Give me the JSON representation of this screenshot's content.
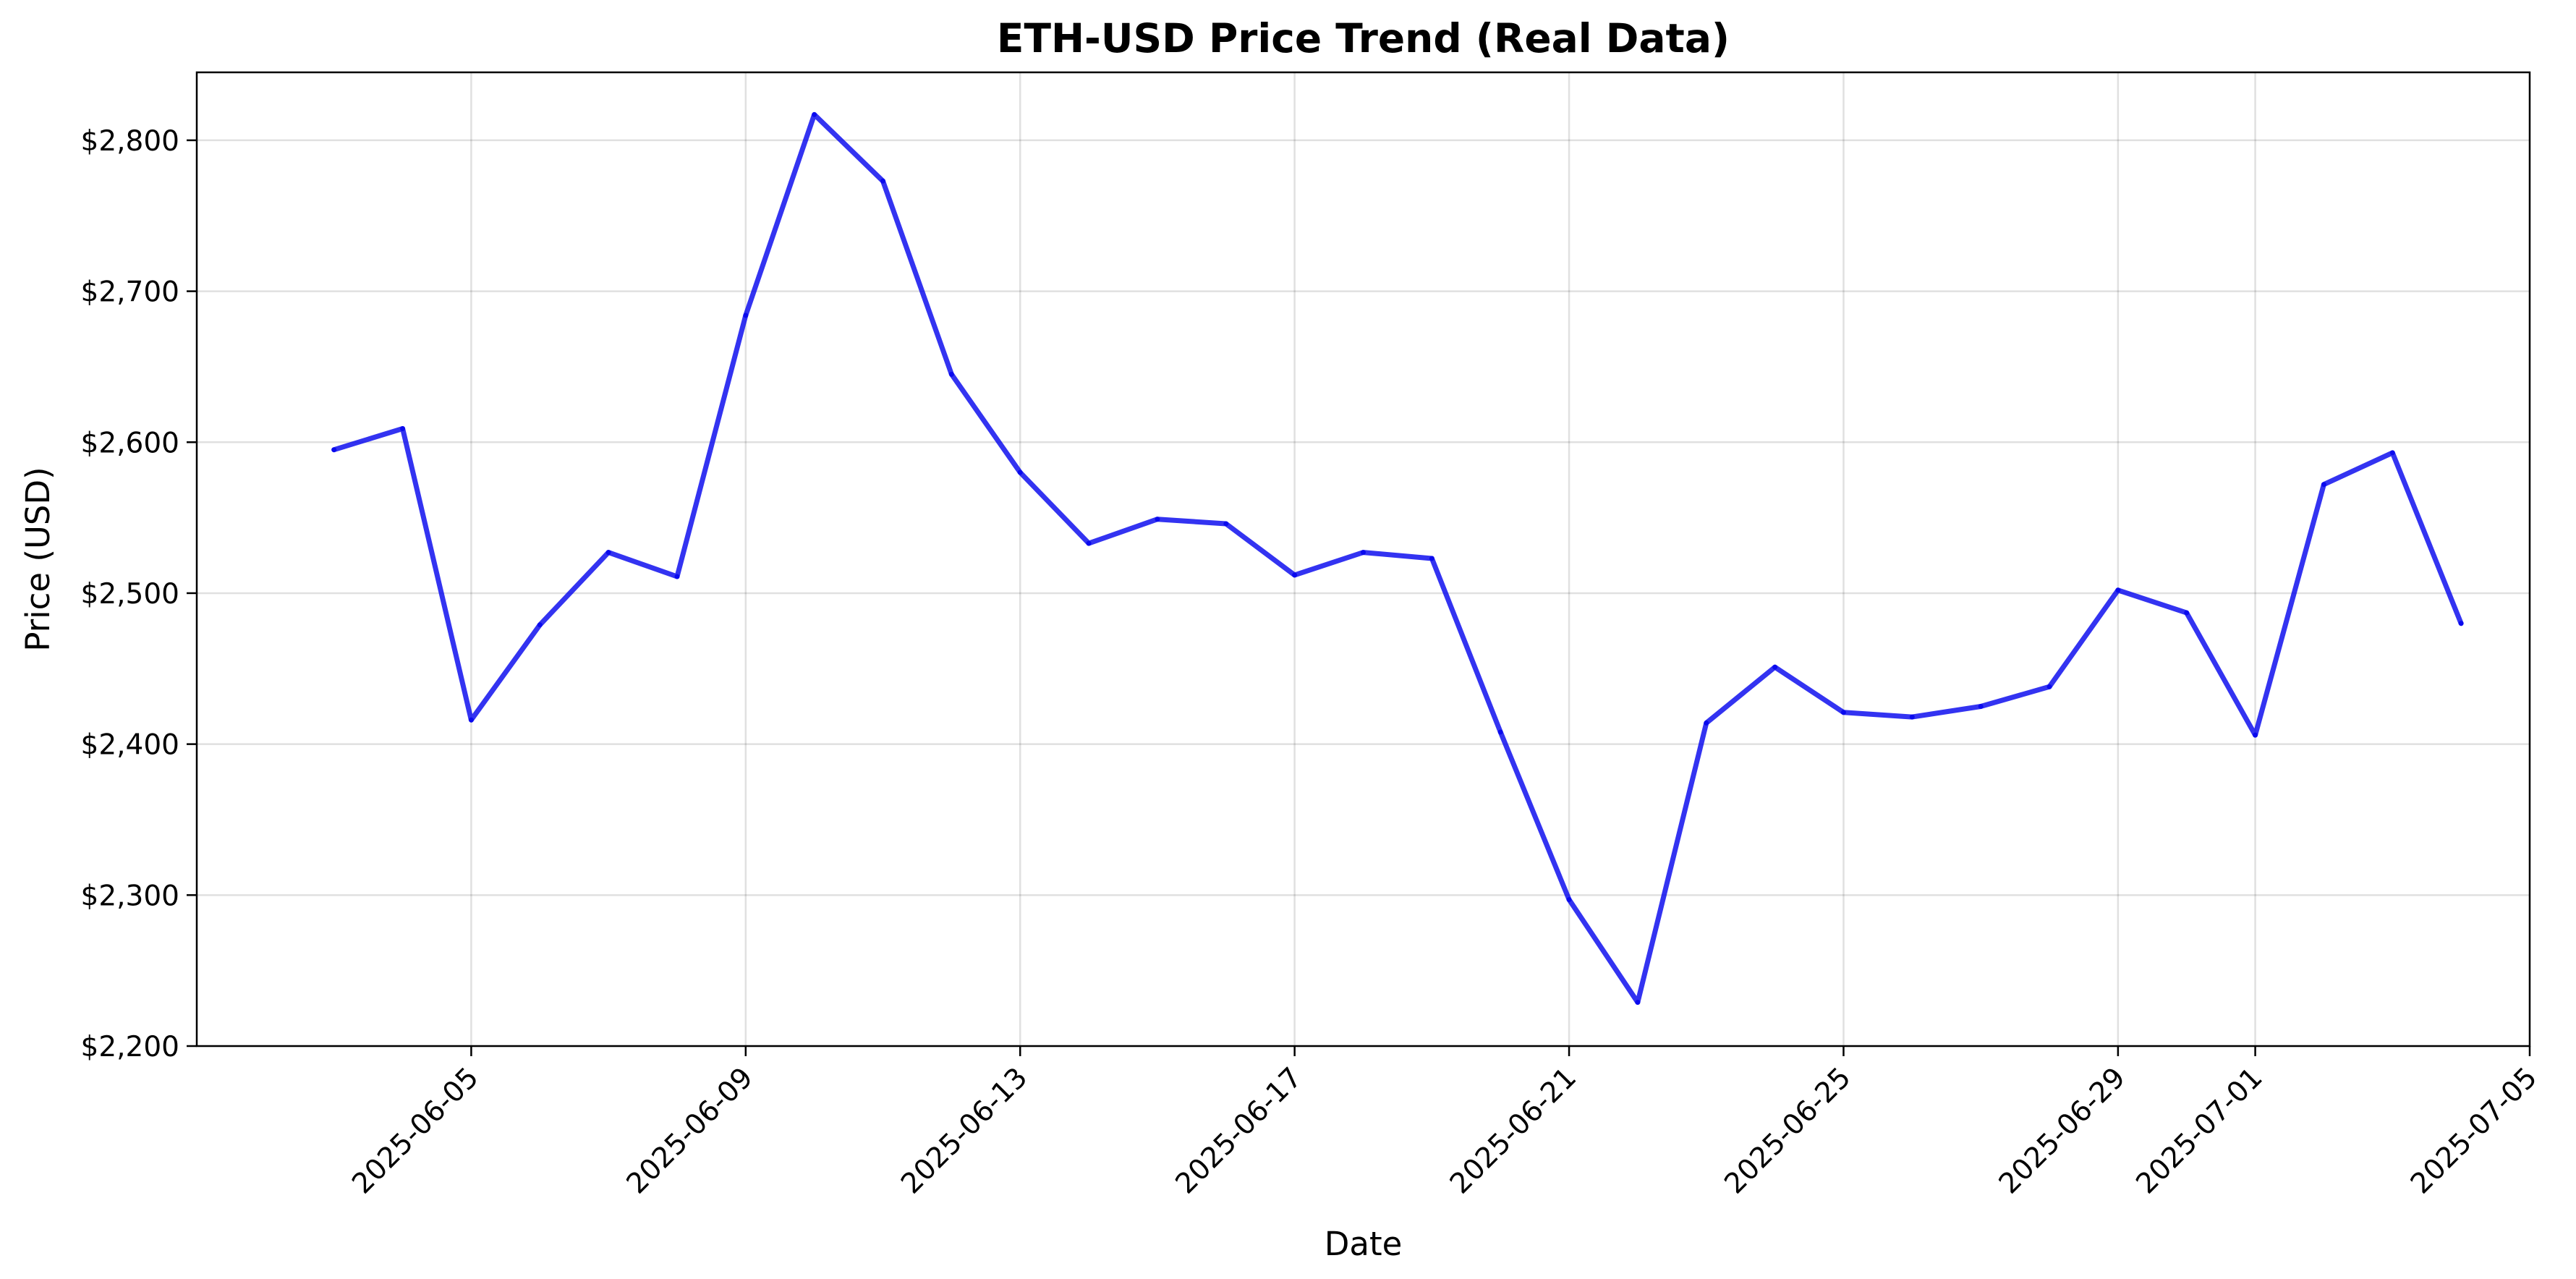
{
  "chart_data": {
    "type": "line",
    "title": "ETH-USD Price Trend (Real Data)",
    "xlabel": "Date",
    "ylabel": "Price (USD)",
    "xlim": [
      "2025-06-01",
      "2025-07-05"
    ],
    "ylim": [
      2200,
      2845
    ],
    "grid": true,
    "line_color": "#0000ee",
    "x_ticks": [
      "2025-06-05",
      "2025-06-09",
      "2025-06-13",
      "2025-06-17",
      "2025-06-21",
      "2025-06-25",
      "2025-06-29",
      "2025-07-01",
      "2025-07-05"
    ],
    "y_ticks": [
      {
        "value": 2200,
        "label": "$2,200"
      },
      {
        "value": 2300,
        "label": "$2,300"
      },
      {
        "value": 2400,
        "label": "$2,400"
      },
      {
        "value": 2500,
        "label": "$2,500"
      },
      {
        "value": 2600,
        "label": "$2,600"
      },
      {
        "value": 2700,
        "label": "$2,700"
      },
      {
        "value": 2800,
        "label": "$2,800"
      }
    ],
    "x": [
      "2025-06-03",
      "2025-06-04",
      "2025-06-05",
      "2025-06-06",
      "2025-06-07",
      "2025-06-08",
      "2025-06-09",
      "2025-06-10",
      "2025-06-11",
      "2025-06-12",
      "2025-06-13",
      "2025-06-14",
      "2025-06-15",
      "2025-06-16",
      "2025-06-17",
      "2025-06-18",
      "2025-06-19",
      "2025-06-20",
      "2025-06-21",
      "2025-06-22",
      "2025-06-23",
      "2025-06-24",
      "2025-06-25",
      "2025-06-26",
      "2025-06-27",
      "2025-06-28",
      "2025-06-29",
      "2025-06-30",
      "2025-07-01",
      "2025-07-02",
      "2025-07-03",
      "2025-07-04"
    ],
    "y": [
      2595,
      2609,
      2416,
      2479,
      2527,
      2511,
      2684,
      2817,
      2773,
      2645,
      2580,
      2533,
      2549,
      2546,
      2512,
      2527,
      2523,
      2408,
      2297,
      2229,
      2414,
      2451,
      2421,
      2418,
      2425,
      2438,
      2502,
      2487,
      2406,
      2572,
      2593,
      2480
    ]
  }
}
